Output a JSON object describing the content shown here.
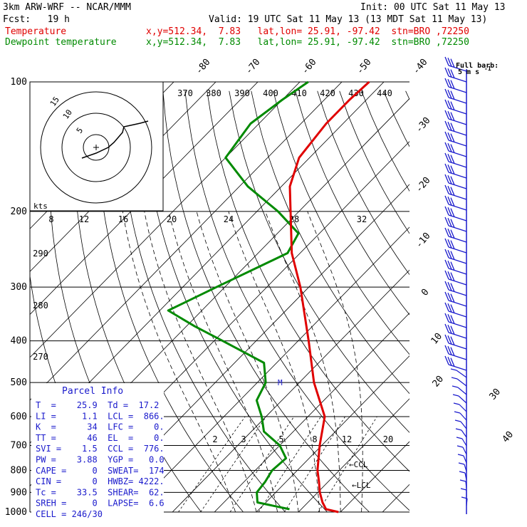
{
  "header": {
    "model": "3km ARW-WRF -- NCAR/MMM",
    "init": "Init: 00 UTC Sat 11 May 13",
    "fcst": "Fcst:   19 h",
    "valid": "Valid: 19 UTC Sat 11 May 13 (13 MDT Sat 11 May 13)",
    "temp_label": "Temperature",
    "temp_loc": "x,y=512.34,  7.83   lat,lon= 25.91, -97.42  stn=BRO ,72250",
    "dew_label": "Dewpoint temperature",
    "dew_loc": "x,y=512.34,  7.83   lat,lon= 25.91, -97.42  stn=BRO ,72250"
  },
  "colors": {
    "temperature": "#e00000",
    "dewpoint": "#008a00",
    "wind": "#1a1acc"
  },
  "barb_legend": {
    "line1": "Full barb:",
    "line2": "5 m s",
    "exp": "-1"
  },
  "chart_data": {
    "type": "skew-t",
    "pressure_levels": [
      "100",
      "200",
      "300",
      "400",
      "500",
      "600",
      "700",
      "800",
      "900",
      "1000"
    ],
    "temperature_isotherms_top": [
      "-80",
      "-70",
      "-60",
      "-50",
      "-40"
    ],
    "temperature_isotherms_side": [
      "-30",
      "-20",
      "-10",
      "0",
      "10",
      "20",
      "30",
      "40"
    ],
    "theta_labels": [
      "370",
      "380",
      "390",
      "400",
      "410",
      "420",
      "430",
      "440"
    ],
    "theta_side_labels": [
      "290",
      "280",
      "270"
    ],
    "mixing_ratio_labels": [
      "2",
      "3",
      "5",
      "8",
      "12",
      "20"
    ],
    "hodograph": {
      "unit": "kts",
      "ring_labels": [
        "5",
        "10",
        "15"
      ],
      "axis_labels": [
        "8",
        "12",
        "16",
        "20",
        "24",
        "28",
        "32"
      ]
    },
    "temperature_profile": [
      {
        "p": 1000,
        "t": 29.5
      },
      {
        "p": 985,
        "t": 25.9
      },
      {
        "p": 950,
        "t": 23.5
      },
      {
        "p": 900,
        "t": 20.5
      },
      {
        "p": 850,
        "t": 17.8
      },
      {
        "p": 800,
        "t": 14.8
      },
      {
        "p": 700,
        "t": 9.5
      },
      {
        "p": 600,
        "t": 4.0
      },
      {
        "p": 500,
        "t": -6.5
      },
      {
        "p": 400,
        "t": -17.5
      },
      {
        "p": 300,
        "t": -32.0
      },
      {
        "p": 250,
        "t": -42.0
      },
      {
        "p": 200,
        "t": -52.0
      },
      {
        "p": 175,
        "t": -58.0
      },
      {
        "p": 150,
        "t": -62.5
      },
      {
        "p": 125,
        "t": -64.0
      },
      {
        "p": 110,
        "t": -64.0
      },
      {
        "p": 100,
        "t": -63.5
      }
    ],
    "dewpoint_profile": [
      {
        "p": 985,
        "t": 17.2
      },
      {
        "p": 950,
        "t": 8.0
      },
      {
        "p": 900,
        "t": 5.5
      },
      {
        "p": 850,
        "t": 5.0
      },
      {
        "p": 800,
        "t": 4.0
      },
      {
        "p": 750,
        "t": 4.5
      },
      {
        "p": 700,
        "t": 0.0
      },
      {
        "p": 650,
        "t": -7.0
      },
      {
        "p": 600,
        "t": -11.0
      },
      {
        "p": 550,
        "t": -16.0
      },
      {
        "p": 500,
        "t": -18.0
      },
      {
        "p": 450,
        "t": -23.0
      },
      {
        "p": 400,
        "t": -38.0
      },
      {
        "p": 370,
        "t": -48.0
      },
      {
        "p": 340,
        "t": -58.0
      },
      {
        "p": 300,
        "t": -52.0
      },
      {
        "p": 250,
        "t": -43.0
      },
      {
        "p": 225,
        "t": -45.0
      },
      {
        "p": 200,
        "t": -55.0
      },
      {
        "p": 175,
        "t": -68.0
      },
      {
        "p": 150,
        "t": -80.0
      },
      {
        "p": 125,
        "t": -82.0
      },
      {
        "p": 110,
        "t": -80.0
      },
      {
        "p": 100,
        "t": -78.0
      }
    ],
    "ccl_label": "CCL",
    "lcl_label": "LCL",
    "lfc_marker": "M"
  },
  "parcel_info": {
    "title": "Parcel Info",
    "rows": [
      "T  =    25.9  Td =  17.2",
      "LI =     1.1  LCL =  866.",
      "K  =      34  LFC =    0.",
      "TT =      46  EL  =    0.",
      "SVI =    1.5  CCL =  776.",
      "PW =    3.88  YGP =   0.0",
      "CAPE =     0  SWEAT=  174",
      "CIN =      0  HWBZ= 4222.",
      "Tc =    33.5  SHEAR=  62.",
      "SREH =     0  LAPSE=  6.6",
      "CELL = 246/30"
    ]
  }
}
